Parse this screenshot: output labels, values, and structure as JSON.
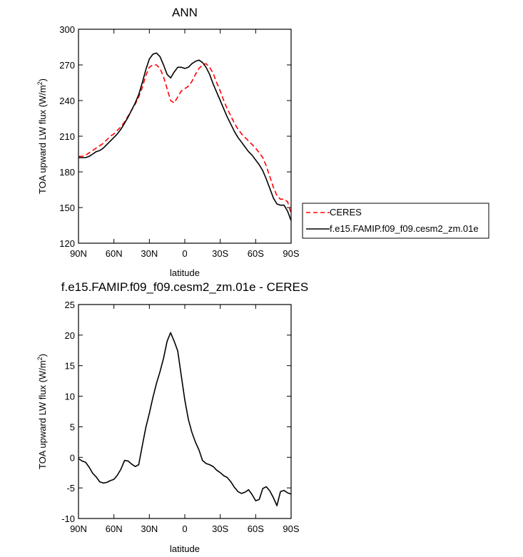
{
  "chart_data": [
    {
      "type": "line",
      "title": "ANN",
      "xlabel": "latitude",
      "ylabel_main": "TOA upward LW flux (W/m",
      "ylabel_sup": "2",
      "ylabel_close": ")",
      "xlim": [
        90,
        -90
      ],
      "ylim": [
        120,
        300
      ],
      "xticks": [
        {
          "value": 90,
          "label": "90N"
        },
        {
          "value": 60,
          "label": "60N"
        },
        {
          "value": 30,
          "label": "30N"
        },
        {
          "value": 0,
          "label": "0"
        },
        {
          "value": -30,
          "label": "30S"
        },
        {
          "value": -60,
          "label": "60S"
        },
        {
          "value": -90,
          "label": "90S"
        }
      ],
      "yticks": [
        120,
        150,
        180,
        210,
        240,
        270,
        300
      ],
      "grid": false,
      "legend": "right",
      "x": [
        90,
        87,
        84,
        81,
        78,
        75,
        72,
        69,
        66,
        63,
        60,
        57,
        54,
        51,
        48,
        45,
        42,
        39,
        36,
        33,
        30,
        27,
        24,
        21,
        18,
        15,
        12,
        9,
        6,
        3,
        0,
        -3,
        -6,
        -9,
        -12,
        -15,
        -18,
        -21,
        -24,
        -27,
        -30,
        -33,
        -36,
        -39,
        -42,
        -45,
        -48,
        -51,
        -54,
        -57,
        -60,
        -63,
        -66,
        -69,
        -72,
        -75,
        -78,
        -81,
        -84,
        -87,
        -90
      ],
      "series": [
        {
          "name": "CERES",
          "style": "dashed",
          "color": "#ff0000",
          "values": [
            193,
            193,
            194,
            196,
            198,
            200,
            202,
            204,
            207,
            210,
            212,
            215,
            218,
            222,
            227,
            232,
            237,
            243,
            251,
            261,
            268,
            270,
            270,
            267,
            260,
            250,
            240,
            238,
            243,
            248,
            250,
            252,
            256,
            262,
            267,
            270,
            271,
            268,
            263,
            255,
            248,
            240,
            233,
            227,
            221,
            216,
            212,
            209,
            206,
            203,
            200,
            196,
            192,
            185,
            176,
            167,
            160,
            157,
            157,
            155,
            145
          ]
        },
        {
          "name": "f.e15.FAMIP.f09_f09.cesm2_zm.01e",
          "style": "solid",
          "color": "#000000",
          "values": [
            192,
            192,
            192,
            193,
            195,
            197,
            198,
            200,
            203,
            206,
            209,
            212,
            216,
            221,
            226,
            232,
            238,
            245,
            255,
            266,
            275,
            279,
            280,
            277,
            270,
            262,
            259,
            264,
            268,
            268,
            267,
            268,
            271,
            273,
            274,
            272,
            268,
            262,
            254,
            247,
            240,
            233,
            226,
            220,
            214,
            209,
            205,
            201,
            197,
            194,
            190,
            186,
            181,
            174,
            166,
            158,
            153,
            152,
            152,
            147,
            139
          ]
        }
      ]
    },
    {
      "type": "line",
      "title": "f.e15.FAMIP.f09_f09.cesm2_zm.01e - CERES",
      "xlabel": "latitude",
      "ylabel_main": "TOA upward LW flux (W/m",
      "ylabel_sup": "2",
      "ylabel_close": ")",
      "xlim": [
        90,
        -90
      ],
      "ylim": [
        -10,
        25
      ],
      "xticks": [
        {
          "value": 90,
          "label": "90N"
        },
        {
          "value": 60,
          "label": "60N"
        },
        {
          "value": 30,
          "label": "30N"
        },
        {
          "value": 0,
          "label": "0"
        },
        {
          "value": -30,
          "label": "30S"
        },
        {
          "value": -60,
          "label": "60S"
        },
        {
          "value": -90,
          "label": "90S"
        }
      ],
      "yticks": [
        -10,
        -5,
        0,
        5,
        10,
        15,
        20,
        25
      ],
      "grid": false,
      "x": [
        90,
        87,
        84,
        81,
        78,
        75,
        72,
        69,
        66,
        63,
        60,
        57,
        54,
        51,
        48,
        45,
        42,
        39,
        36,
        33,
        30,
        27,
        24,
        21,
        18,
        15,
        12,
        9,
        6,
        3,
        0,
        -3,
        -6,
        -9,
        -12,
        -15,
        -18,
        -21,
        -24,
        -27,
        -30,
        -33,
        -36,
        -39,
        -42,
        -45,
        -48,
        -51,
        -54,
        -57,
        -60,
        -63,
        -66,
        -69,
        -72,
        -75,
        -78,
        -81,
        -84,
        -87,
        -90
      ],
      "series": [
        {
          "name": "f.e15.FAMIP.f09_f09.cesm2_zm.01e - CERES",
          "style": "solid",
          "color": "#000000",
          "values": [
            -0.2,
            -0.6,
            -0.8,
            -1.6,
            -2.6,
            -3.2,
            -4.0,
            -4.2,
            -4.1,
            -3.8,
            -3.6,
            -2.9,
            -1.9,
            -0.5,
            -0.6,
            -1.1,
            -1.5,
            -1.2,
            1.9,
            4.9,
            7.2,
            9.8,
            12.1,
            14.0,
            16.2,
            19.0,
            20.4,
            19.0,
            17.4,
            13.4,
            9.4,
            6.2,
            4.1,
            2.5,
            1.2,
            -0.5,
            -1.0,
            -1.2,
            -1.5,
            -2.1,
            -2.5,
            -3.0,
            -3.3,
            -4.0,
            -4.9,
            -5.6,
            -5.9,
            -5.7,
            -5.3,
            -6.1,
            -7.1,
            -6.9,
            -5.1,
            -4.8,
            -5.5,
            -6.6,
            -7.9,
            -5.6,
            -5.4,
            -5.8,
            -6.0
          ]
        }
      ]
    }
  ]
}
